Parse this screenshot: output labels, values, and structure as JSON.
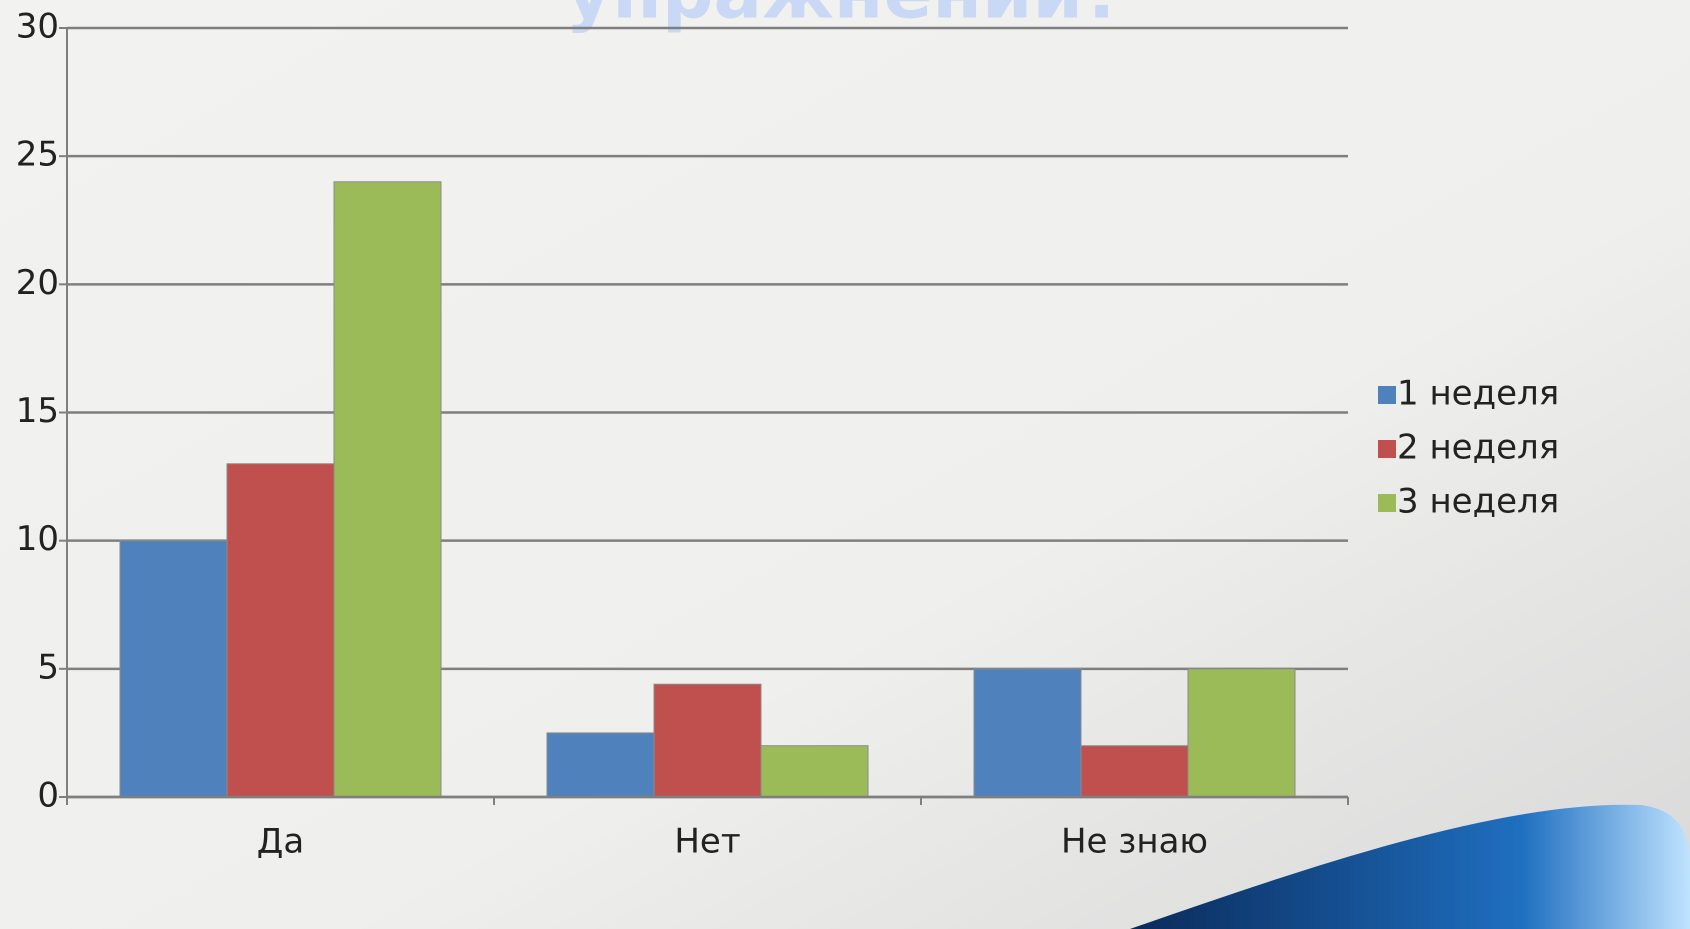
{
  "chart_data": {
    "type": "bar",
    "title": "упражнений?",
    "categories": [
      "Да",
      "Нет",
      "Не знаю"
    ],
    "series": [
      {
        "name": "1 неделя",
        "color": "#4f81bd",
        "values": [
          10,
          2.5,
          5
        ]
      },
      {
        "name": "2 неделя",
        "color": "#c0504d",
        "values": [
          13,
          4.4,
          2
        ]
      },
      {
        "name": "3 неделя",
        "color": "#9bbb59",
        "values": [
          24,
          2,
          5
        ]
      }
    ],
    "ylim": [
      0,
      30
    ],
    "yticks": [
      0,
      5,
      10,
      15,
      20,
      25,
      30
    ],
    "grid": true,
    "legend": "right"
  }
}
